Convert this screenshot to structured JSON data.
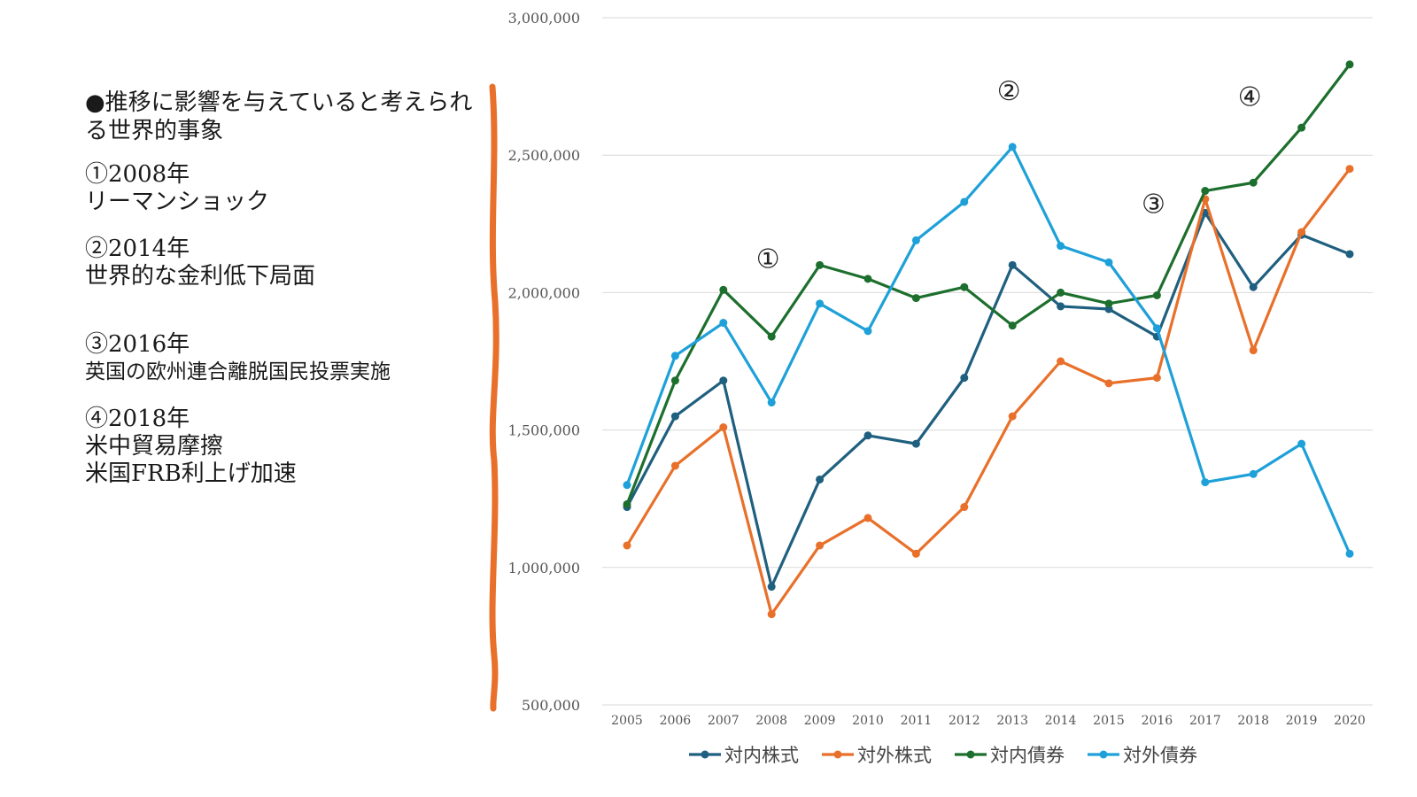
{
  "notes": {
    "heading": "●推移に影響を与えていると考えられる世界的事象",
    "events": [
      {
        "label": "①2008年",
        "desc": [
          "リーマンショック"
        ]
      },
      {
        "label": "②2014年",
        "desc": [
          "世界的な金利低下局面"
        ]
      },
      {
        "label": "③2016年",
        "desc": [
          "英国の欧州連合離脱国民投票実施"
        ]
      },
      {
        "label": "④2018年",
        "desc": [
          "米中貿易摩擦",
          "米国FRB利上げ加速"
        ]
      }
    ]
  },
  "colors": {
    "brace": "#e8702a",
    "grid": "#d9d9d9"
  },
  "chart_data": {
    "type": "line",
    "x": [
      "2005",
      "2006",
      "2007",
      "2008",
      "2009",
      "2010",
      "2011",
      "2012",
      "2013",
      "2014",
      "2015",
      "2016",
      "2017",
      "2018",
      "2019",
      "2020"
    ],
    "ylim": [
      500000,
      3000000
    ],
    "yticks": [
      "500,000",
      "1,000,000",
      "1,500,000",
      "2,000,000",
      "2,500,000",
      "3,000,000"
    ],
    "series": [
      {
        "name": "対内株式",
        "color": "#1f5f7f",
        "values": [
          1220000,
          1550000,
          1680000,
          930000,
          1320000,
          1480000,
          1450000,
          1690000,
          2100000,
          1950000,
          1940000,
          1840000,
          2290000,
          2020000,
          2210000,
          2140000
        ]
      },
      {
        "name": "対外株式",
        "color": "#e8702a",
        "values": [
          1080000,
          1370000,
          1510000,
          830000,
          1080000,
          1180000,
          1050000,
          1220000,
          1550000,
          1750000,
          1670000,
          1690000,
          2340000,
          1790000,
          2220000,
          2450000
        ]
      },
      {
        "name": "対内債券",
        "color": "#1d6f2e",
        "values": [
          1230000,
          1680000,
          2010000,
          1840000,
          2100000,
          2050000,
          1980000,
          2020000,
          1880000,
          2000000,
          1960000,
          1990000,
          2370000,
          2400000,
          2600000,
          2830000
        ]
      },
      {
        "name": "対外債券",
        "color": "#1ea0d8",
        "values": [
          1300000,
          1770000,
          1890000,
          1600000,
          1960000,
          1860000,
          2190000,
          2330000,
          2530000,
          2170000,
          2110000,
          1870000,
          1310000,
          1340000,
          1450000,
          1050000
        ]
      }
    ],
    "annotations": [
      {
        "text": "①",
        "x": "2008",
        "y": 2090000
      },
      {
        "text": "②",
        "x": "2013",
        "y": 2700000
      },
      {
        "text": "③",
        "x": "2016",
        "y": 2290000
      },
      {
        "text": "④",
        "x": "2018",
        "y": 2680000
      }
    ],
    "grid": true,
    "legend": "bottom"
  }
}
